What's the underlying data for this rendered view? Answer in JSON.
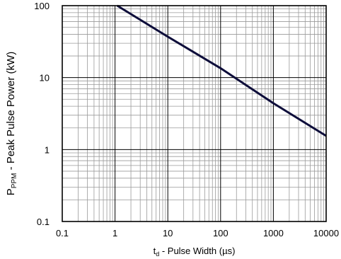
{
  "chart_data": {
    "type": "line",
    "title": "",
    "xscale": "log",
    "yscale": "log",
    "xlim": [
      0.1,
      10000
    ],
    "ylim": [
      0.1,
      100
    ],
    "grid": true,
    "x_ticks": [
      "0.1",
      "1",
      "10",
      "100",
      "1000",
      "10000"
    ],
    "y_ticks": [
      "0.1",
      "1",
      "10",
      "100"
    ],
    "xlabel": {
      "main": "t",
      "sub": "d",
      "rest": " - Pulse Width (µs)"
    },
    "ylabel": {
      "main": "P",
      "sub": "PPM",
      "rest": " - Peak Pulse Power (kW)"
    },
    "series": [
      {
        "color": "#0d0d3a",
        "x": [
          1.1,
          10,
          100,
          1000,
          10000
        ],
        "y": [
          100,
          37,
          13.5,
          4.4,
          1.55
        ]
      }
    ]
  }
}
